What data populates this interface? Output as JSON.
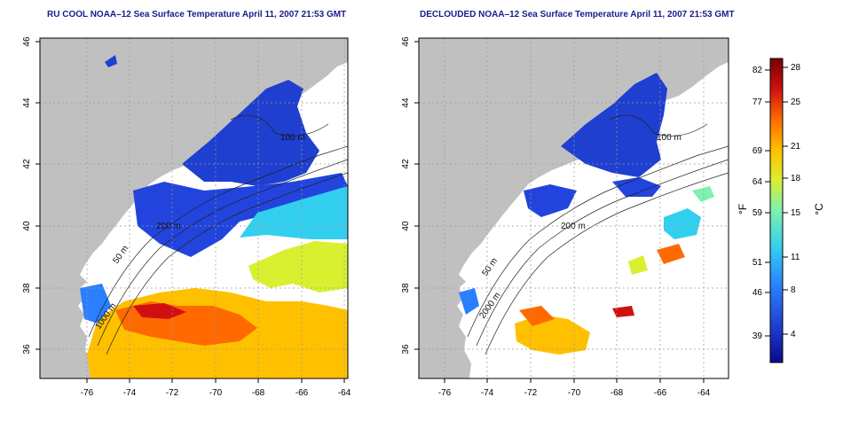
{
  "panels": [
    {
      "id": "left",
      "title": "RU COOL NOAA–12 Sea Surface Temperature April 11, 2007 21:53 GMT",
      "variant": "cool"
    },
    {
      "id": "right",
      "title": "DECLOUDED NOAA–12 Sea Surface Temperature April 11, 2007 21:53 GMT",
      "variant": "declouded"
    }
  ],
  "axes": {
    "x_ticks": [
      "-76",
      "-74",
      "-72",
      "-70",
      "-68",
      "-66",
      "-64"
    ],
    "y_ticks": [
      "36",
      "38",
      "40",
      "42",
      "44",
      "46"
    ]
  },
  "contours": {
    "labels": [
      "100 m",
      "200 m",
      "50 m",
      "1000 m",
      "2000 m"
    ]
  },
  "colorbar": {
    "fahrenheit_ticks": [
      "82",
      "77",
      "69",
      "64",
      "59",
      "51",
      "46",
      "39"
    ],
    "celsius_ticks": [
      "28",
      "25",
      "21",
      "18",
      "15",
      "11",
      "8",
      "4"
    ],
    "fahrenheit_label": "°F",
    "celsius_label": "°C",
    "colors": [
      "#0a0a8c",
      "#1f3fd0",
      "#2a7fff",
      "#33cfef",
      "#7ff0b0",
      "#d8f030",
      "#ffc000",
      "#ff6a00",
      "#d01010",
      "#7a0000"
    ]
  }
}
